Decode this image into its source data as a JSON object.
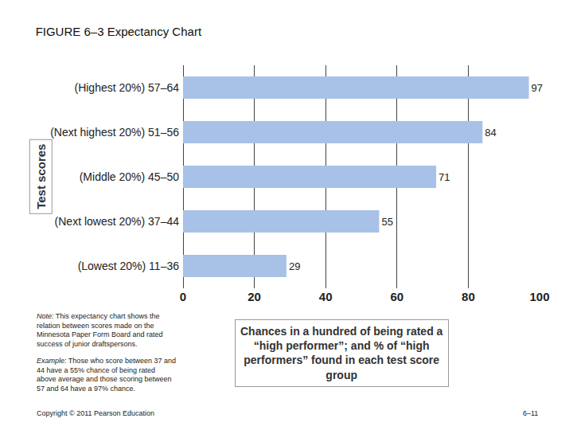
{
  "chart_data": {
    "type": "bar",
    "orientation": "horizontal",
    "title": "FIGURE 6–3 Expectancy Chart",
    "categories": [
      "(Highest 20%) 57–64",
      "(Next highest 20%) 51–56",
      "(Middle 20%) 45–50",
      "(Next lowest 20%) 37–44",
      "(Lowest 20%) 11–36"
    ],
    "values": [
      97,
      84,
      71,
      55,
      29
    ],
    "color": "#a7c2e6",
    "xlim": [
      0,
      100
    ],
    "xticks": [
      0,
      20,
      40,
      60,
      80,
      100
    ],
    "grid": true,
    "data_labels": true,
    "xlabel": "Chances in a hundred of being rated a “high performer”; and % of “high performers” found in each test score group",
    "ylabel": "Test scores",
    "annotations": [
      "Note: This expectancy chart shows the relation between scores made on the Minnesota Paper Form Board and rated success of junior draftspersons.",
      "Example: Those who score between 37 and 44 have a 55% chance of being rated above average and those scoring between 57 and 64 have a 97% chance.",
      "Copyright © 2011 Pearson Education",
      "6–11"
    ]
  }
}
